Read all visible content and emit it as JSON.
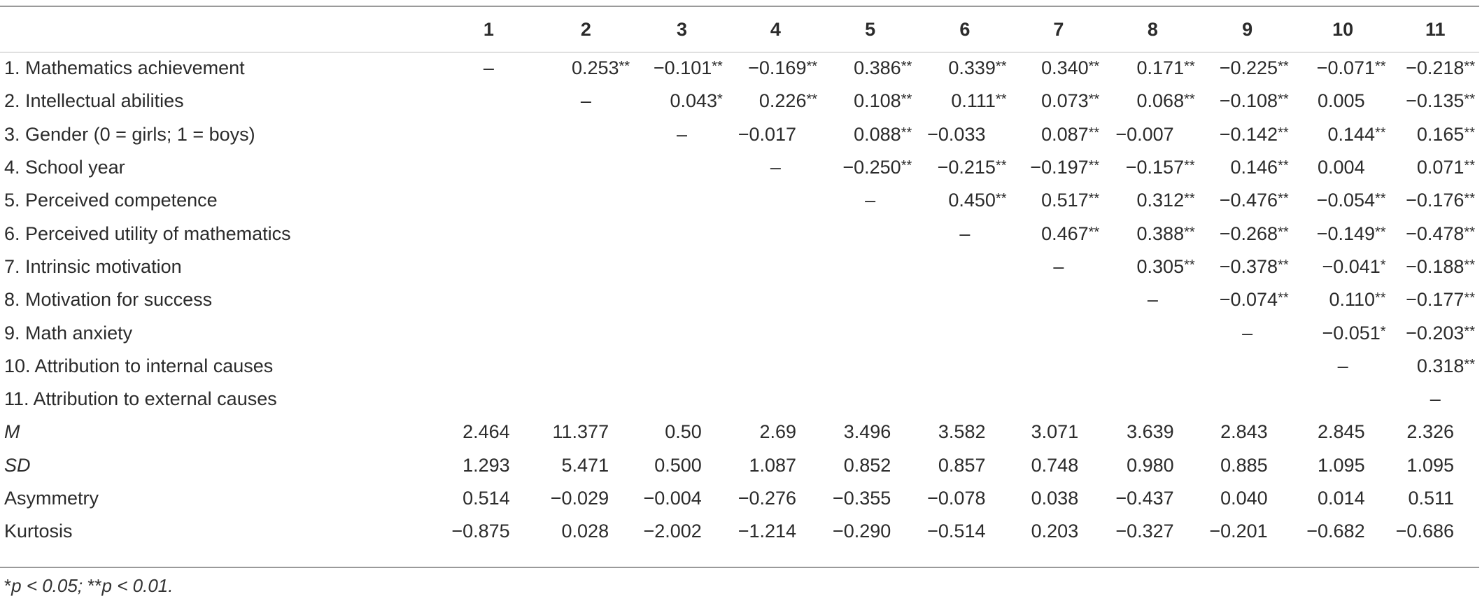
{
  "columns": [
    "1",
    "2",
    "3",
    "4",
    "5",
    "6",
    "7",
    "8",
    "9",
    "10",
    "11"
  ],
  "rows": [
    {
      "label": "1. Mathematics achievement",
      "italic": false,
      "cells": [
        [
          "–",
          ""
        ],
        [
          "0.253",
          "**"
        ],
        [
          "−0.101",
          "**"
        ],
        [
          "−0.169",
          "**"
        ],
        [
          "0.386",
          "**"
        ],
        [
          "0.339",
          "**"
        ],
        [
          "0.340",
          "**"
        ],
        [
          "0.171",
          "**"
        ],
        [
          "−0.225",
          "**"
        ],
        [
          "−0.071",
          "**"
        ],
        [
          "−0.218",
          "**"
        ]
      ]
    },
    {
      "label": "2. Intellectual abilities",
      "italic": false,
      "cells": [
        [
          "",
          ""
        ],
        [
          "–",
          ""
        ],
        [
          "0.043",
          "*"
        ],
        [
          "0.226",
          "**"
        ],
        [
          "0.108",
          "**"
        ],
        [
          "0.111",
          "**"
        ],
        [
          "0.073",
          "**"
        ],
        [
          "0.068",
          "**"
        ],
        [
          "−0.108",
          "**"
        ],
        [
          "0.005",
          ""
        ],
        [
          "−0.135",
          "**"
        ]
      ]
    },
    {
      "label": "3. Gender (0 = girls; 1 = boys)",
      "italic": false,
      "cells": [
        [
          "",
          ""
        ],
        [
          "",
          ""
        ],
        [
          "–",
          ""
        ],
        [
          "−0.017",
          ""
        ],
        [
          "0.088",
          "**"
        ],
        [
          "−0.033",
          ""
        ],
        [
          "0.087",
          "**"
        ],
        [
          "−0.007",
          ""
        ],
        [
          "−0.142",
          "**"
        ],
        [
          "0.144",
          "**"
        ],
        [
          "0.165",
          "**"
        ]
      ]
    },
    {
      "label": "4. School year",
      "italic": false,
      "cells": [
        [
          "",
          ""
        ],
        [
          "",
          ""
        ],
        [
          "",
          ""
        ],
        [
          "–",
          ""
        ],
        [
          "−0.250",
          "**"
        ],
        [
          "−0.215",
          "**"
        ],
        [
          "−0.197",
          "**"
        ],
        [
          "−0.157",
          "**"
        ],
        [
          "0.146",
          "**"
        ],
        [
          "0.004",
          ""
        ],
        [
          "0.071",
          "**"
        ]
      ]
    },
    {
      "label": "5. Perceived competence",
      "italic": false,
      "cells": [
        [
          "",
          ""
        ],
        [
          "",
          ""
        ],
        [
          "",
          ""
        ],
        [
          "",
          ""
        ],
        [
          "–",
          ""
        ],
        [
          "0.450",
          "**"
        ],
        [
          "0.517",
          "**"
        ],
        [
          "0.312",
          "**"
        ],
        [
          "−0.476",
          "**"
        ],
        [
          "−0.054",
          "**"
        ],
        [
          "−0.176",
          "**"
        ]
      ]
    },
    {
      "label": "6. Perceived utility of mathematics",
      "italic": false,
      "cells": [
        [
          "",
          ""
        ],
        [
          "",
          ""
        ],
        [
          "",
          ""
        ],
        [
          "",
          ""
        ],
        [
          "",
          ""
        ],
        [
          "–",
          ""
        ],
        [
          "0.467",
          "**"
        ],
        [
          "0.388",
          "**"
        ],
        [
          "−0.268",
          "**"
        ],
        [
          "−0.149",
          "**"
        ],
        [
          "−0.478",
          "**"
        ]
      ]
    },
    {
      "label": "7. Intrinsic motivation",
      "italic": false,
      "cells": [
        [
          "",
          ""
        ],
        [
          "",
          ""
        ],
        [
          "",
          ""
        ],
        [
          "",
          ""
        ],
        [
          "",
          ""
        ],
        [
          "",
          ""
        ],
        [
          "–",
          ""
        ],
        [
          "0.305",
          "**"
        ],
        [
          "−0.378",
          "**"
        ],
        [
          "−0.041",
          "*"
        ],
        [
          "−0.188",
          "**"
        ]
      ]
    },
    {
      "label": "8. Motivation for success",
      "italic": false,
      "cells": [
        [
          "",
          ""
        ],
        [
          "",
          ""
        ],
        [
          "",
          ""
        ],
        [
          "",
          ""
        ],
        [
          "",
          ""
        ],
        [
          "",
          ""
        ],
        [
          "",
          ""
        ],
        [
          "–",
          ""
        ],
        [
          "−0.074",
          "**"
        ],
        [
          "0.110",
          "**"
        ],
        [
          "−0.177",
          "**"
        ]
      ]
    },
    {
      "label": "9. Math anxiety",
      "italic": false,
      "cells": [
        [
          "",
          ""
        ],
        [
          "",
          ""
        ],
        [
          "",
          ""
        ],
        [
          "",
          ""
        ],
        [
          "",
          ""
        ],
        [
          "",
          ""
        ],
        [
          "",
          ""
        ],
        [
          "",
          ""
        ],
        [
          "–",
          ""
        ],
        [
          "−0.051",
          "*"
        ],
        [
          "−0.203",
          "**"
        ]
      ]
    },
    {
      "label": "10. Attribution to internal causes",
      "italic": false,
      "cells": [
        [
          "",
          ""
        ],
        [
          "",
          ""
        ],
        [
          "",
          ""
        ],
        [
          "",
          ""
        ],
        [
          "",
          ""
        ],
        [
          "",
          ""
        ],
        [
          "",
          ""
        ],
        [
          "",
          ""
        ],
        [
          "",
          ""
        ],
        [
          "–",
          ""
        ],
        [
          "0.318",
          "**"
        ]
      ]
    },
    {
      "label": "11. Attribution to external causes",
      "italic": false,
      "cells": [
        [
          "",
          ""
        ],
        [
          "",
          ""
        ],
        [
          "",
          ""
        ],
        [
          "",
          ""
        ],
        [
          "",
          ""
        ],
        [
          "",
          ""
        ],
        [
          "",
          ""
        ],
        [
          "",
          ""
        ],
        [
          "",
          ""
        ],
        [
          "",
          ""
        ],
        [
          "–",
          ""
        ]
      ]
    },
    {
      "label": "M",
      "italic": true,
      "cells": [
        [
          "2.464",
          ""
        ],
        [
          "11.377",
          ""
        ],
        [
          "0.50",
          ""
        ],
        [
          "2.69",
          ""
        ],
        [
          "3.496",
          ""
        ],
        [
          "3.582",
          ""
        ],
        [
          "3.071",
          ""
        ],
        [
          "3.639",
          ""
        ],
        [
          "2.843",
          ""
        ],
        [
          "2.845",
          ""
        ],
        [
          "2.326",
          ""
        ]
      ]
    },
    {
      "label": "SD",
      "italic": true,
      "cells": [
        [
          "1.293",
          ""
        ],
        [
          "5.471",
          ""
        ],
        [
          "0.500",
          ""
        ],
        [
          "1.087",
          ""
        ],
        [
          "0.852",
          ""
        ],
        [
          "0.857",
          ""
        ],
        [
          "0.748",
          ""
        ],
        [
          "0.980",
          ""
        ],
        [
          "0.885",
          ""
        ],
        [
          "1.095",
          ""
        ],
        [
          "1.095",
          ""
        ]
      ]
    },
    {
      "label": "Asymmetry",
      "italic": false,
      "cells": [
        [
          "0.514",
          ""
        ],
        [
          "−0.029",
          ""
        ],
        [
          "−0.004",
          ""
        ],
        [
          "−0.276",
          ""
        ],
        [
          "−0.355",
          ""
        ],
        [
          "−0.078",
          ""
        ],
        [
          "0.038",
          ""
        ],
        [
          "−0.437",
          ""
        ],
        [
          "0.040",
          ""
        ],
        [
          "0.014",
          ""
        ],
        [
          "0.511",
          ""
        ]
      ]
    },
    {
      "label": "Kurtosis",
      "italic": false,
      "cells": [
        [
          "−0.875",
          ""
        ],
        [
          "0.028",
          ""
        ],
        [
          "−2.002",
          ""
        ],
        [
          "−1.214",
          ""
        ],
        [
          "−0.290",
          ""
        ],
        [
          "−0.514",
          ""
        ],
        [
          "0.203",
          ""
        ],
        [
          "−0.327",
          ""
        ],
        [
          "−0.201",
          ""
        ],
        [
          "−0.682",
          ""
        ],
        [
          "−0.686",
          ""
        ]
      ]
    }
  ],
  "footnote": {
    "sym1": "*",
    "p1": "p",
    "txt1": " < 0.05; ",
    "sym2": "**",
    "p2": "p",
    "txt2": " < 0.01."
  }
}
